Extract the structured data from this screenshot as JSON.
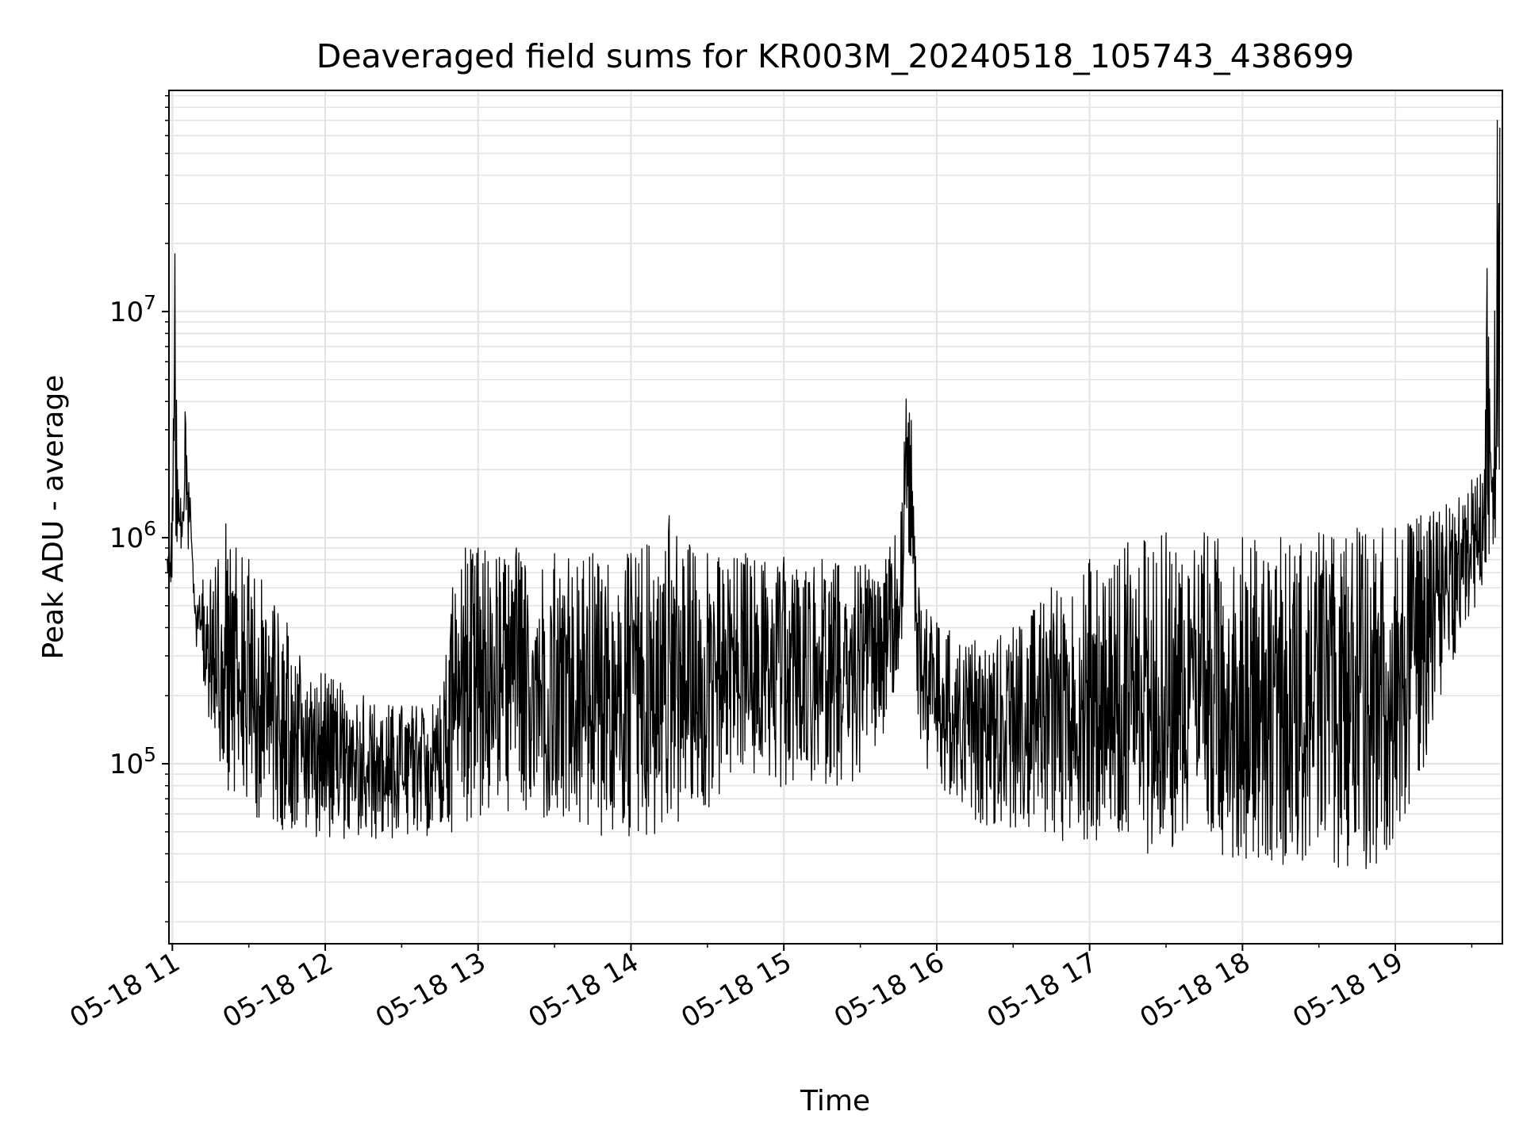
{
  "chart_data": {
    "type": "line",
    "title": "Deaveraged field sums for KR003M_20240518_105743_438699",
    "xlabel": "Time",
    "ylabel": "Peak ADU - average",
    "y_scale": "log",
    "ylim": [
      16000,
      95000000
    ],
    "xlim": [
      "05-18 10:58:40",
      "05-18 19:42:00"
    ],
    "x_unit": "time (MM-DD HH:MM)",
    "grid": {
      "major": true,
      "minor_y": true
    },
    "legend": "none",
    "line_color": "#000000",
    "grid_color": "#e3e3e3",
    "x_ticks": [
      {
        "label": "05-18 11",
        "value": "05-18 11:00"
      },
      {
        "label": "05-18 12",
        "value": "05-18 12:00"
      },
      {
        "label": "05-18 13",
        "value": "05-18 13:00"
      },
      {
        "label": "05-18 14",
        "value": "05-18 14:00"
      },
      {
        "label": "05-18 15",
        "value": "05-18 15:00"
      },
      {
        "label": "05-18 16",
        "value": "05-18 16:00"
      },
      {
        "label": "05-18 17",
        "value": "05-18 17:00"
      },
      {
        "label": "05-18 18",
        "value": "05-18 18:00"
      },
      {
        "label": "05-18 19",
        "value": "05-18 19:00"
      }
    ],
    "y_ticks": [
      {
        "base": "10",
        "exp": "5",
        "value": 100000
      },
      {
        "base": "10",
        "exp": "6",
        "value": 1000000
      },
      {
        "base": "10",
        "exp": "7",
        "value": 10000000
      }
    ],
    "series": [
      {
        "x": [
          "05-18 10:58",
          "05-18 11:00",
          "05-18 11:01",
          "05-18 11:02",
          "05-18 11:04",
          "05-18 11:05",
          "05-18 11:07",
          "05-18 11:09",
          "05-18 11:12",
          "05-18 11:15",
          "05-18 11:18",
          "05-18 11:21",
          "05-18 11:25",
          "05-18 11:30",
          "05-18 11:35",
          "05-18 11:40",
          "05-18 11:45",
          "05-18 11:50",
          "05-18 12:00",
          "05-18 12:15",
          "05-18 12:30",
          "05-18 12:45",
          "05-18 12:50",
          "05-18 12:55",
          "05-18 13:00",
          "05-18 13:15",
          "05-18 13:30",
          "05-18 13:45",
          "05-18 14:00",
          "05-18 14:15",
          "05-18 14:30",
          "05-18 14:45",
          "05-18 15:00",
          "05-18 15:15",
          "05-18 15:30",
          "05-18 15:40",
          "05-18 15:46",
          "05-18 15:48",
          "05-18 15:50",
          "05-18 15:53",
          "05-18 15:56",
          "05-18 16:00",
          "05-18 16:15",
          "05-18 16:30",
          "05-18 16:45",
          "05-18 17:00",
          "05-18 17:15",
          "05-18 17:30",
          "05-18 17:45",
          "05-18 18:00",
          "05-18 18:15",
          "05-18 18:30",
          "05-18 18:45",
          "05-18 18:55",
          "05-18 19:00",
          "05-18 19:05",
          "05-18 19:10",
          "05-18 19:15",
          "05-18 19:20",
          "05-18 19:25",
          "05-18 19:30",
          "05-18 19:35",
          "05-18 19:36",
          "05-18 19:38",
          "05-18 19:40",
          "05-18 19:41"
        ],
        "y_lo": [
          580000,
          620000,
          700000,
          900000,
          850000,
          900000,
          800000,
          350000,
          220000,
          140000,
          100000,
          80000,
          65000,
          60000,
          55000,
          52000,
          50000,
          48000,
          47000,
          45000,
          46000,
          48000,
          50000,
          55000,
          55000,
          60000,
          50000,
          45000,
          45000,
          48000,
          60000,
          90000,
          75000,
          80000,
          80000,
          130000,
          250000,
          1100000,
          600000,
          130000,
          90000,
          70000,
          55000,
          50000,
          46000,
          42000,
          40000,
          40000,
          40000,
          38000,
          36000,
          34000,
          33000,
          35000,
          50000,
          60000,
          75000,
          110000,
          200000,
          330000,
          450000,
          620000,
          800000,
          850000,
          900000,
          900000
        ],
        "y_hi": [
          800000,
          1500000,
          18000000,
          2000000,
          1300000,
          3600000,
          1500000,
          500000,
          650000,
          650000,
          800000,
          1150000,
          900000,
          800000,
          650000,
          500000,
          420000,
          300000,
          250000,
          200000,
          180000,
          200000,
          600000,
          900000,
          900000,
          900000,
          850000,
          850000,
          850000,
          1250000,
          850000,
          850000,
          820000,
          800000,
          750000,
          800000,
          1300000,
          4100000,
          3300000,
          600000,
          480000,
          420000,
          350000,
          400000,
          600000,
          800000,
          950000,
          1050000,
          1050000,
          1000000,
          1000000,
          1050000,
          1100000,
          1100000,
          1100000,
          1150000,
          1250000,
          1300000,
          1400000,
          1500000,
          1800000,
          2000000,
          15500000,
          1700000,
          70000000,
          65000000
        ]
      }
    ]
  }
}
